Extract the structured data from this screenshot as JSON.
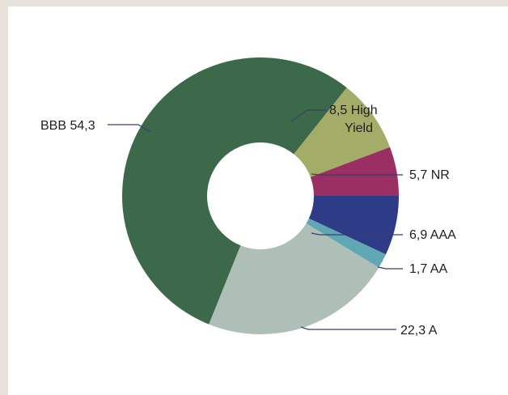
{
  "chart_data": {
    "type": "pie",
    "donut": true,
    "categories": [
      "High Yield",
      "NR",
      "AAA",
      "AA",
      "A",
      "BBB"
    ],
    "values": [
      8.5,
      5.7,
      6.9,
      1.7,
      22.3,
      54.3
    ],
    "labels": [
      {
        "value": "8,5",
        "name": "High",
        "name2": "Yield"
      },
      {
        "value": "5,7",
        "name": "NR"
      },
      {
        "value": "6,9",
        "name": "AAA"
      },
      {
        "value": "1,7",
        "name": "AA"
      },
      {
        "value": "22,3",
        "name": "A"
      },
      {
        "value": "BBB 54,3",
        "name": ""
      }
    ],
    "colors": [
      "#a3ad67",
      "#9a2f63",
      "#2e3b86",
      "#5fa7b3",
      "#adbfb6",
      "#3d694b"
    ]
  }
}
